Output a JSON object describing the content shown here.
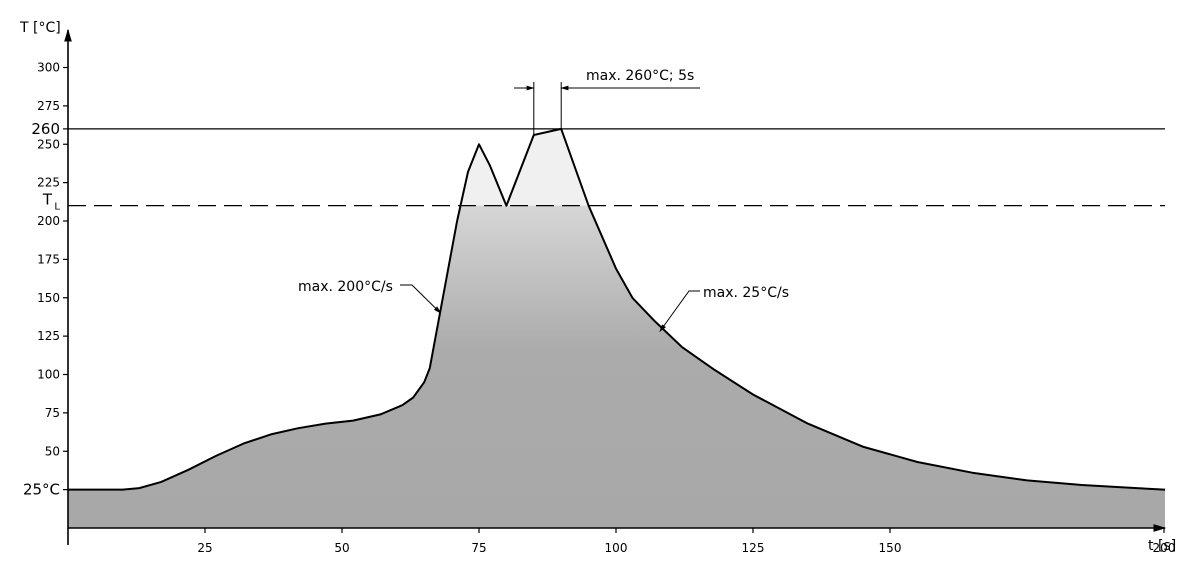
{
  "chart_data": {
    "type": "area",
    "title": "",
    "xlabel": "t [s]",
    "ylabel": "T [°C]",
    "xlim": [
      0,
      200
    ],
    "ylim": [
      0,
      300
    ],
    "x_ticks": [
      25,
      50,
      75,
      100,
      125,
      150,
      200
    ],
    "y_ticks": [
      50,
      75,
      100,
      125,
      150,
      175,
      200,
      225,
      250,
      275,
      300
    ],
    "y_marks": [
      {
        "value": 25,
        "label": "25°C"
      },
      {
        "value": 260,
        "label": "260"
      }
    ],
    "reference_lines": [
      {
        "y": 260,
        "style": "solid",
        "label": "260"
      },
      {
        "y": 210,
        "style": "dashed",
        "label": "T",
        "label_sub": "L"
      }
    ],
    "series": [
      {
        "points": [
          [
            0,
            25
          ],
          [
            10,
            25
          ],
          [
            13,
            26
          ],
          [
            17,
            30
          ],
          [
            22,
            38
          ],
          [
            27,
            47
          ],
          [
            32,
            55
          ],
          [
            37,
            61
          ],
          [
            42,
            65
          ],
          [
            47,
            68
          ],
          [
            52,
            70
          ],
          [
            57,
            74
          ],
          [
            61,
            80
          ],
          [
            63,
            85
          ],
          [
            65,
            95
          ],
          [
            66,
            104
          ],
          [
            71,
            200
          ],
          [
            73,
            232
          ],
          [
            75,
            250
          ],
          [
            77,
            236
          ],
          [
            80,
            210
          ],
          [
            85,
            256
          ],
          [
            90,
            260
          ],
          [
            95,
            210
          ],
          [
            100,
            169
          ],
          [
            103,
            150
          ],
          [
            107,
            135
          ],
          [
            112,
            118
          ],
          [
            118,
            103
          ],
          [
            125,
            87
          ],
          [
            135,
            68
          ],
          [
            145,
            53
          ],
          [
            155,
            43
          ],
          [
            165,
            36
          ],
          [
            175,
            31
          ],
          [
            185,
            28
          ],
          [
            195,
            26
          ],
          [
            200,
            25
          ]
        ]
      }
    ],
    "fill": {
      "top_color": "#f0f0f0",
      "mid_color": "#cccccc",
      "bottom_color": "#a8a8a8"
    },
    "annotations": [
      {
        "text": "max. 200°C/s",
        "x": 68,
        "y": 140
      },
      {
        "text": "max. 25°C/s",
        "x": 108,
        "y": 128
      },
      {
        "text": "max. 260°C; 5s",
        "x_from": 85,
        "x_to": 90
      }
    ]
  }
}
